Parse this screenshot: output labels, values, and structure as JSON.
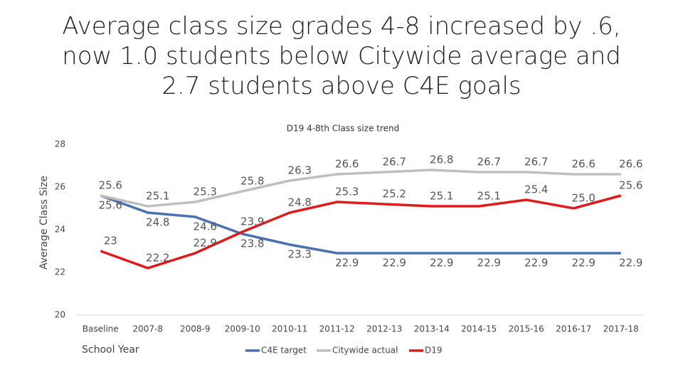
{
  "chart_data": {
    "type": "line",
    "slide_title": "Average class size grades 4-8 increased by .6, now 1.0 students below Citywide average and 2.7 students above C4E goals",
    "title": "D19 4-8th Class size trend",
    "ylabel": "Average Class Size",
    "xlabel": "School Year",
    "categories": [
      "Baseline",
      "2007-8",
      "2008-9",
      "2009-10",
      "2010-11",
      "2011-12",
      "2012-13",
      "2013-14",
      "2014-15",
      "2015-16",
      "2016-17",
      "2017-18"
    ],
    "series": [
      {
        "name": "C4E target",
        "color": "#4a72b0",
        "values": [
          25.6,
          24.8,
          24.6,
          23.8,
          23.3,
          22.9,
          22.9,
          22.9,
          22.9,
          22.9,
          22.9,
          22.9
        ]
      },
      {
        "name": "Citywide actual",
        "color": "#bfbfbf",
        "values": [
          25.6,
          25.1,
          25.3,
          25.8,
          26.3,
          26.6,
          26.7,
          26.8,
          26.7,
          26.7,
          26.6,
          26.6
        ]
      },
      {
        "name": "D19",
        "color": "#e01b1b",
        "values": [
          23,
          22.2,
          22.9,
          23.9,
          24.8,
          25.3,
          25.2,
          25.1,
          25.1,
          25.4,
          25.0,
          25.6
        ],
        "value_labels": [
          "23",
          "22.2",
          "22.9",
          "23.9",
          "24.8",
          "25.3",
          "25.2",
          "25.1",
          "25.1",
          "25.4",
          "25.0",
          "25.6"
        ]
      }
    ],
    "ylim": [
      20,
      28
    ],
    "yticks": [
      20,
      22,
      24,
      26,
      28
    ],
    "grid": false,
    "legend": "bottom"
  }
}
